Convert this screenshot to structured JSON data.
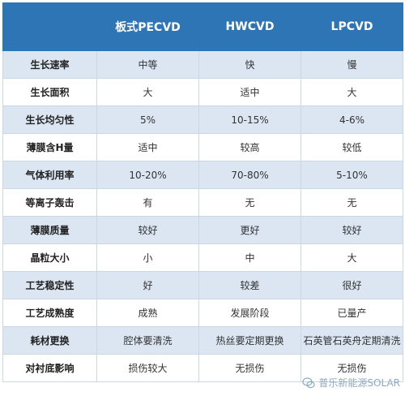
{
  "headers": [
    "",
    "板式PECVD",
    "HWCVD",
    "LPCVD"
  ],
  "rows": [
    {
      "label": "生长速率",
      "values": [
        "中等",
        "快",
        "慢"
      ]
    },
    {
      "label": "生长面积",
      "values": [
        "大",
        "适中",
        "大"
      ]
    },
    {
      "label": "生长均匀性",
      "values": [
        "5%",
        "10-15%",
        "4-6%"
      ]
    },
    {
      "label": "薄膜含H量",
      "values": [
        "适中",
        "较高",
        "较低"
      ]
    },
    {
      "label": "气体利用率",
      "values": [
        "10-20%",
        "70-80%",
        "5-10%"
      ]
    },
    {
      "label": "等离子轰击",
      "values": [
        "有",
        "无",
        "无"
      ]
    },
    {
      "label": "薄膜质量",
      "values": [
        "较好",
        "更好",
        "较好"
      ]
    },
    {
      "label": "晶粒大小",
      "values": [
        "小",
        "中",
        "大"
      ]
    },
    {
      "label": "工艺稳定性",
      "values": [
        "好",
        "较差",
        "很好"
      ]
    },
    {
      "label": "工艺成熟度",
      "values": [
        "成熟",
        "发展阶段",
        "已量产"
      ]
    },
    {
      "label": "耗材更换",
      "values": [
        "腔体要清洗",
        "热丝要定期更换",
        "石英管石英舟定期清洗"
      ]
    },
    {
      "label": "对衬底影响",
      "values": [
        "损伤较大",
        "无损伤",
        "无损伤"
      ]
    }
  ],
  "watermark": {
    "text": "普乐新能源SOLAR",
    "icon": "wechat-icon"
  }
}
